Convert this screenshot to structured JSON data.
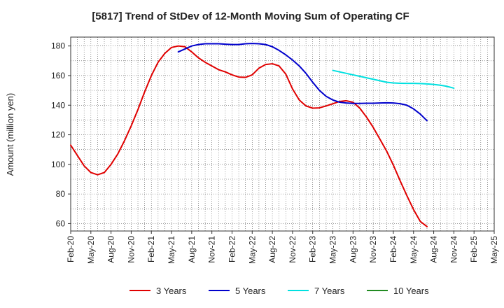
{
  "chart_data": {
    "type": "line",
    "title": "[5817]  Trend of StDev of 12-Month Moving Sum of Operating CF",
    "xlabel": "",
    "ylabel": "Amount (million yen)",
    "ylim": [
      55,
      186
    ],
    "yticks": [
      60,
      80,
      100,
      120,
      140,
      160,
      180
    ],
    "grid": true,
    "legend_position": "bottom",
    "x_tick_labels": [
      "Feb-20",
      "May-20",
      "Aug-20",
      "Nov-20",
      "Feb-21",
      "May-21",
      "Aug-21",
      "Nov-21",
      "Feb-22",
      "May-22",
      "Aug-22",
      "Nov-22",
      "Feb-23",
      "May-23",
      "Aug-23",
      "Nov-23",
      "Feb-24",
      "May-24",
      "Aug-24",
      "Nov-24",
      "Feb-25",
      "May-25"
    ],
    "series": [
      {
        "name": "3 Years",
        "color": "#e00000",
        "start_index": 0,
        "values": [
          113,
          106,
          99,
          94.5,
          93,
          94.5,
          100,
          107,
          116,
          126,
          137,
          149,
          160,
          169,
          175,
          179,
          180,
          179.5,
          176,
          172,
          169,
          166.5,
          164,
          162.5,
          160.5,
          159,
          158.8,
          160.5,
          165,
          167.5,
          168,
          166.5,
          161,
          151,
          143.5,
          139.5,
          138,
          138.2,
          139.5,
          141,
          142.5,
          143,
          142,
          138,
          132,
          125,
          117,
          109,
          99.5,
          89,
          79,
          69.5,
          61.5,
          58
        ]
      },
      {
        "name": "5 Years",
        "color": "#0000cc",
        "start_index": 16,
        "values": [
          176,
          178,
          180,
          181,
          181.5,
          181.5,
          181.5,
          181.2,
          181,
          181,
          181.5,
          181.7,
          181.5,
          181,
          179.5,
          177,
          174,
          170.5,
          166.5,
          161.5,
          155.5,
          150,
          146,
          143.5,
          142,
          141.5,
          141.2,
          141.2,
          141.3,
          141.3,
          141.5,
          141.6,
          141.5,
          141,
          140,
          137.5,
          134,
          129.5
        ]
      },
      {
        "name": "7 Years",
        "color": "#00e0e0",
        "start_index": 39,
        "values": [
          163.5,
          162.5,
          161.5,
          160.5,
          159.5,
          158.5,
          157.5,
          156.5,
          155.5,
          155,
          154.8,
          154.7,
          154.7,
          154.6,
          154.4,
          154,
          153.5,
          152.7,
          151.5
        ]
      },
      {
        "name": "10 Years",
        "color": "#228b22",
        "start_index": 0,
        "values": []
      }
    ]
  }
}
